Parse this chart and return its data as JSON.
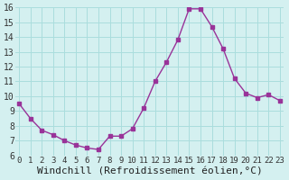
{
  "x": [
    0,
    1,
    2,
    3,
    4,
    5,
    6,
    7,
    8,
    9,
    10,
    11,
    12,
    13,
    14,
    15,
    16,
    17,
    18,
    19,
    20,
    21,
    22,
    23
  ],
  "y": [
    9.5,
    8.5,
    7.7,
    7.4,
    7.0,
    6.7,
    6.5,
    6.4,
    7.3,
    7.3,
    7.8,
    9.2,
    11.0,
    12.3,
    13.8,
    15.9,
    15.9,
    14.7,
    13.2,
    11.2,
    10.2,
    9.9,
    10.1,
    9.7
  ],
  "line_color": "#993399",
  "marker": "s",
  "marker_size": 3,
  "line_width": 1.0,
  "background_color": "#d4f0f0",
  "grid_color": "#aadddd",
  "xlabel": "Windchill (Refroidissement éolien,°C)",
  "xlabel_fontsize": 8,
  "tick_fontsize": 7,
  "ylim": [
    6,
    16
  ],
  "xlim": [
    0,
    23
  ],
  "yticks": [
    6,
    7,
    8,
    9,
    10,
    11,
    12,
    13,
    14,
    15,
    16
  ],
  "xticks": [
    0,
    1,
    2,
    3,
    4,
    5,
    6,
    7,
    8,
    9,
    10,
    11,
    12,
    13,
    14,
    15,
    16,
    17,
    18,
    19,
    20,
    21,
    22,
    23
  ]
}
